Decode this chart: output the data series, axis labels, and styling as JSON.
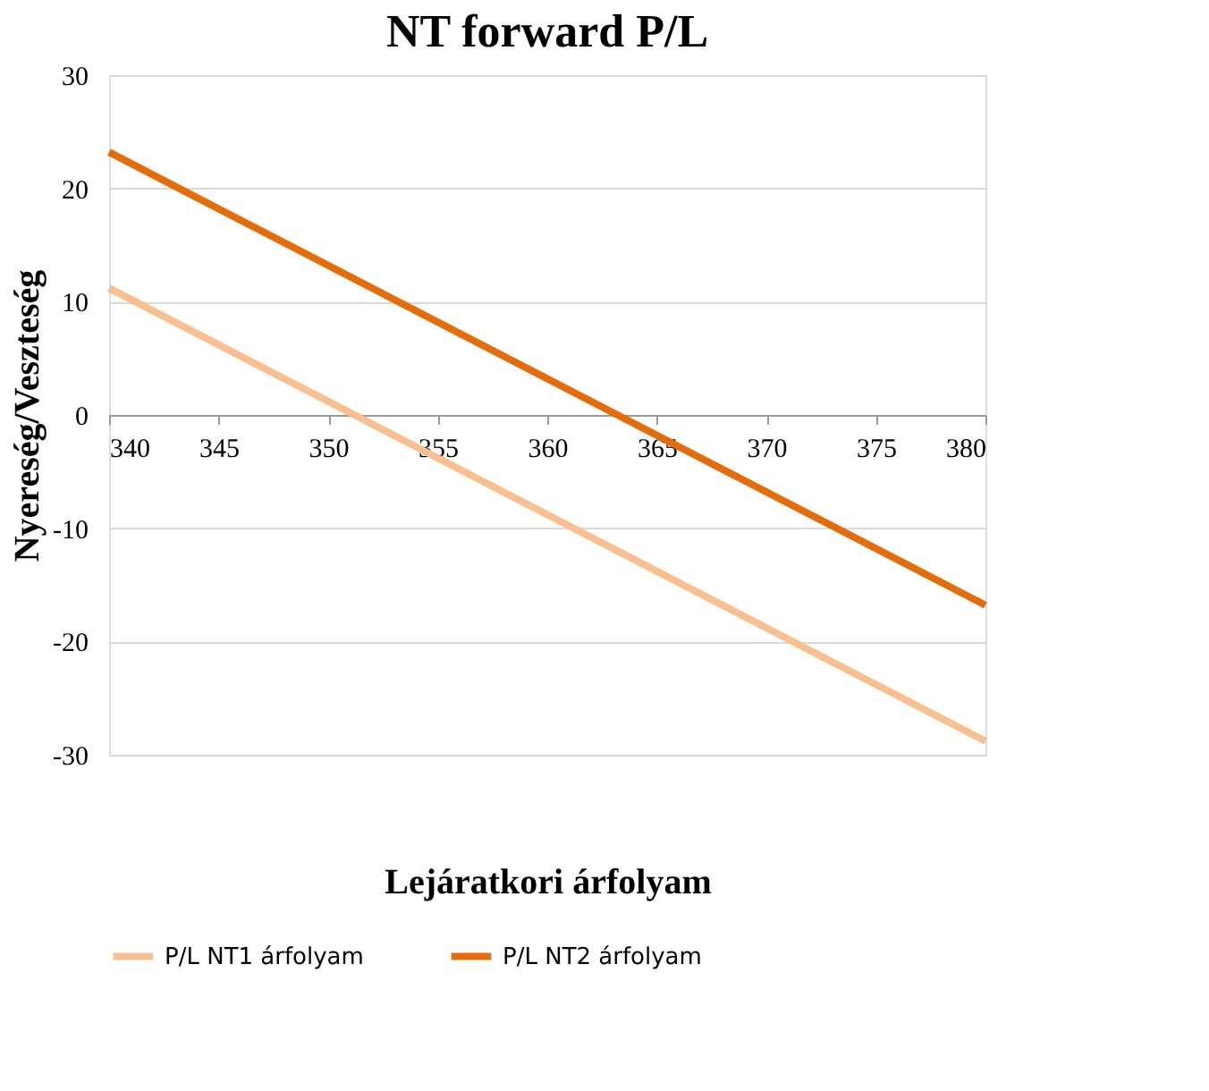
{
  "chart_data": {
    "type": "line",
    "title": "NT forward P/L",
    "xlabel": "Lejáratkori árfolyam",
    "ylabel": "Nyereség/Veszteség",
    "x": [
      340,
      380
    ],
    "series": [
      {
        "name": "P/L NT1 árfolyam",
        "color": "#f9bf8f",
        "values": [
          11.2,
          -28.8
        ]
      },
      {
        "name": "P/L NT2 árfolyam",
        "color": "#e46c0a",
        "values": [
          23.2,
          -16.8
        ]
      }
    ],
    "xlim": [
      340,
      380
    ],
    "xticks": [
      340,
      345,
      350,
      355,
      360,
      365,
      370,
      375,
      380
    ],
    "ylim": [
      -30,
      30
    ],
    "yticks": [
      -30,
      -20,
      -10,
      0,
      10,
      20,
      30
    ],
    "grid": "y",
    "legend": "bottom",
    "marker": "none",
    "line_style": "solid"
  }
}
